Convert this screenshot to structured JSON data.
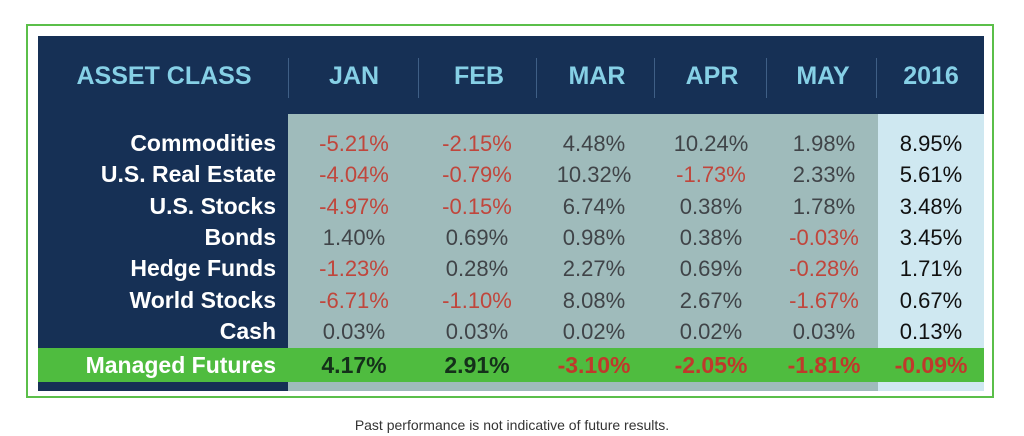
{
  "chart_data": {
    "type": "table",
    "columns": [
      "ASSET CLASS",
      "JAN",
      "FEB",
      "MAR",
      "APR",
      "MAY",
      "2016"
    ],
    "rows": [
      {
        "label": "Commodities",
        "values": [
          "-5.21%",
          "-2.15%",
          "4.48%",
          "10.24%",
          "1.98%",
          "8.95%"
        ]
      },
      {
        "label": "U.S. Real Estate",
        "values": [
          "-4.04%",
          "-0.79%",
          "10.32%",
          "-1.73%",
          "2.33%",
          "5.61%"
        ]
      },
      {
        "label": "U.S. Stocks",
        "values": [
          "-4.97%",
          "-0.15%",
          "6.74%",
          "0.38%",
          "1.78%",
          "3.48%"
        ]
      },
      {
        "label": "Bonds",
        "values": [
          "1.40%",
          "0.69%",
          "0.98%",
          "0.38%",
          "-0.03%",
          "3.45%"
        ]
      },
      {
        "label": "Hedge Funds",
        "values": [
          "-1.23%",
          "0.28%",
          "2.27%",
          "0.69%",
          "-0.28%",
          "1.71%"
        ]
      },
      {
        "label": "World Stocks",
        "values": [
          "-6.71%",
          "-1.10%",
          "8.08%",
          "2.67%",
          "-1.67%",
          "0.67%"
        ]
      },
      {
        "label": "Cash",
        "values": [
          "0.03%",
          "0.03%",
          "0.02%",
          "0.02%",
          "0.03%",
          "0.13%"
        ]
      }
    ],
    "highlight_row": {
      "label": "Managed Futures",
      "values": [
        "4.17%",
        "2.91%",
        "-3.10%",
        "-2.05%",
        "-1.81%",
        "-0.09%"
      ]
    },
    "footnote": "Past performance is not indicative of future results."
  },
  "colors": {
    "negative": "#c0463c",
    "positive_mid": "#404448",
    "positive_right": "#101010",
    "highlight_positive": "#14301a",
    "highlight_negative": "#c0392b"
  }
}
